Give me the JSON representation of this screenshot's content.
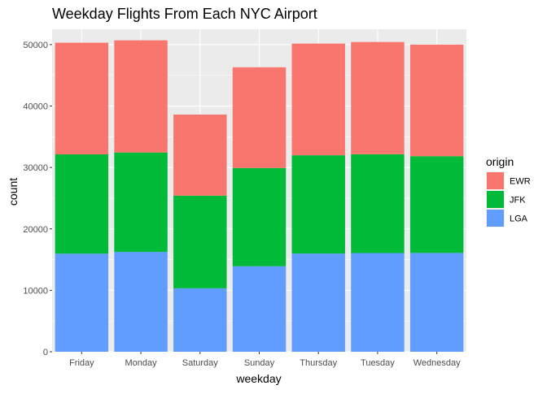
{
  "chart_data": {
    "type": "bar",
    "stacked": true,
    "title": "Weekday Flights From Each NYC Airport",
    "xlabel": "weekday",
    "ylabel": "count",
    "categories": [
      "Friday",
      "Monday",
      "Saturday",
      "Sunday",
      "Thursday",
      "Tuesday",
      "Wednesday"
    ],
    "series": [
      {
        "name": "LGA",
        "color": "#619CFF",
        "values": [
          15965,
          16251,
          10330,
          13920,
          15986,
          16064,
          16086
        ]
      },
      {
        "name": "JFK",
        "color": "#00BA38",
        "values": [
          16167,
          16186,
          15081,
          15990,
          16000,
          16082,
          15747
        ]
      },
      {
        "name": "EWR",
        "color": "#F8766D",
        "values": [
          18177,
          18260,
          13200,
          16400,
          18181,
          18278,
          18165
        ]
      }
    ],
    "ylim": [
      0,
      52500
    ],
    "yticks": [
      0,
      10000,
      20000,
      30000,
      40000,
      50000
    ],
    "grid": true,
    "legend": {
      "title": "origin",
      "position": "right",
      "items": [
        {
          "label": "EWR",
          "color": "#F8766D"
        },
        {
          "label": "JFK",
          "color": "#00BA38"
        },
        {
          "label": "LGA",
          "color": "#619CFF"
        }
      ]
    },
    "panel_color": "#EBEBEB",
    "grid_color": "#FFFFFF"
  }
}
